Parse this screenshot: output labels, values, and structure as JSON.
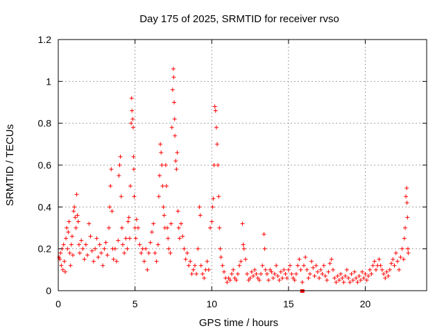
{
  "chart_data": {
    "type": "scatter",
    "title": "Day 175 of 2025, SRMTID for receiver rvso",
    "xlabel": "GPS time / hours",
    "ylabel": "SRMTID / TECUs",
    "xlim": [
      0,
      24
    ],
    "ylim": [
      0,
      1.2
    ],
    "xticks": [
      0,
      5,
      10,
      15,
      20
    ],
    "xtick_labels": [
      "0",
      "5",
      "10",
      "15",
      "20"
    ],
    "yticks": [
      0,
      0.2,
      0.4,
      0.6,
      0.8,
      1.0,
      1.2
    ],
    "ytick_labels": [
      "0",
      "0.2",
      "0.4",
      "0.6",
      "0.8",
      "1",
      "1.2"
    ],
    "grid": true,
    "marker": "+",
    "color": "#ff0000",
    "series": [
      {
        "name": "SRMTID",
        "points": [
          [
            0.05,
            0.16
          ],
          [
            0.1,
            0.15
          ],
          [
            0.15,
            0.18
          ],
          [
            0.2,
            0.12
          ],
          [
            0.25,
            0.2
          ],
          [
            0.3,
            0.1
          ],
          [
            0.35,
            0.22
          ],
          [
            0.4,
            0.14
          ],
          [
            0.45,
            0.09
          ],
          [
            0.5,
            0.25
          ],
          [
            0.55,
            0.3
          ],
          [
            0.6,
            0.2
          ],
          [
            0.65,
            0.28
          ],
          [
            0.7,
            0.33
          ],
          [
            0.75,
            0.18
          ],
          [
            0.8,
            0.12
          ],
          [
            0.85,
            0.22
          ],
          [
            0.9,
            0.26
          ],
          [
            0.95,
            0.17
          ],
          [
            1.0,
            0.38
          ],
          [
            1.05,
            0.4
          ],
          [
            1.1,
            0.35
          ],
          [
            1.15,
            0.3
          ],
          [
            1.2,
            0.46
          ],
          [
            1.25,
            0.36
          ],
          [
            1.3,
            0.33
          ],
          [
            1.35,
            0.22
          ],
          [
            1.4,
            0.18
          ],
          [
            1.5,
            0.24
          ],
          [
            1.6,
            0.2
          ],
          [
            1.7,
            0.15
          ],
          [
            1.8,
            0.22
          ],
          [
            1.9,
            0.17
          ],
          [
            2.0,
            0.32
          ],
          [
            2.1,
            0.26
          ],
          [
            2.2,
            0.19
          ],
          [
            2.3,
            0.14
          ],
          [
            2.4,
            0.2
          ],
          [
            2.5,
            0.25
          ],
          [
            2.6,
            0.16
          ],
          [
            2.7,
            0.22
          ],
          [
            2.8,
            0.18
          ],
          [
            2.9,
            0.12
          ],
          [
            3.0,
            0.2
          ],
          [
            3.1,
            0.23
          ],
          [
            3.2,
            0.17
          ],
          [
            3.3,
            0.3
          ],
          [
            3.35,
            0.4
          ],
          [
            3.4,
            0.5
          ],
          [
            3.45,
            0.58
          ],
          [
            3.5,
            0.38
          ],
          [
            3.55,
            0.2
          ],
          [
            3.6,
            0.15
          ],
          [
            3.7,
            0.2
          ],
          [
            3.8,
            0.14
          ],
          [
            3.9,
            0.24
          ],
          [
            3.95,
            0.55
          ],
          [
            4.0,
            0.6
          ],
          [
            4.05,
            0.64
          ],
          [
            4.1,
            0.45
          ],
          [
            4.15,
            0.3
          ],
          [
            4.2,
            0.22
          ],
          [
            4.3,
            0.18
          ],
          [
            4.4,
            0.25
          ],
          [
            4.5,
            0.2
          ],
          [
            4.55,
            0.33
          ],
          [
            4.6,
            0.35
          ],
          [
            4.65,
            0.25
          ],
          [
            4.7,
            0.5
          ],
          [
            4.75,
            0.8
          ],
          [
            4.78,
            0.92
          ],
          [
            4.8,
            0.86
          ],
          [
            4.85,
            0.82
          ],
          [
            4.88,
            0.78
          ],
          [
            4.9,
            0.64
          ],
          [
            4.92,
            0.58
          ],
          [
            4.95,
            0.45
          ],
          [
            5.0,
            0.3
          ],
          [
            5.05,
            0.25
          ],
          [
            5.1,
            0.34
          ],
          [
            5.2,
            0.3
          ],
          [
            5.3,
            0.22
          ],
          [
            5.4,
            0.18
          ],
          [
            5.5,
            0.2
          ],
          [
            5.6,
            0.14
          ],
          [
            5.7,
            0.2
          ],
          [
            5.8,
            0.1
          ],
          [
            5.9,
            0.18
          ],
          [
            6.0,
            0.23
          ],
          [
            6.1,
            0.28
          ],
          [
            6.2,
            0.32
          ],
          [
            6.3,
            0.18
          ],
          [
            6.4,
            0.14
          ],
          [
            6.5,
            0.22
          ],
          [
            6.55,
            0.45
          ],
          [
            6.6,
            0.55
          ],
          [
            6.65,
            0.7
          ],
          [
            6.7,
            0.66
          ],
          [
            6.75,
            0.6
          ],
          [
            6.8,
            0.5
          ],
          [
            6.85,
            0.4
          ],
          [
            6.9,
            0.36
          ],
          [
            6.95,
            0.3
          ],
          [
            7.0,
            0.6
          ],
          [
            7.05,
            0.5
          ],
          [
            7.1,
            0.3
          ],
          [
            7.15,
            0.25
          ],
          [
            7.2,
            0.2
          ],
          [
            7.3,
            0.18
          ],
          [
            7.35,
            0.32
          ],
          [
            7.4,
            0.78
          ],
          [
            7.45,
            0.96
          ],
          [
            7.5,
            1.06
          ],
          [
            7.52,
            1.02
          ],
          [
            7.55,
            0.9
          ],
          [
            7.58,
            0.82
          ],
          [
            7.6,
            0.74
          ],
          [
            7.65,
            0.62
          ],
          [
            7.7,
            0.58
          ],
          [
            7.75,
            0.66
          ],
          [
            7.8,
            0.38
          ],
          [
            7.85,
            0.3
          ],
          [
            7.9,
            0.25
          ],
          [
            8.0,
            0.32
          ],
          [
            8.1,
            0.26
          ],
          [
            8.2,
            0.2
          ],
          [
            8.3,
            0.15
          ],
          [
            8.4,
            0.18
          ],
          [
            8.5,
            0.12
          ],
          [
            8.6,
            0.14
          ],
          [
            8.7,
            0.08
          ],
          [
            8.8,
            0.1
          ],
          [
            8.9,
            0.12
          ],
          [
            9.0,
            0.08
          ],
          [
            9.1,
            0.2
          ],
          [
            9.2,
            0.4
          ],
          [
            9.25,
            0.36
          ],
          [
            9.3,
            0.12
          ],
          [
            9.4,
            0.08
          ],
          [
            9.5,
            0.06
          ],
          [
            9.6,
            0.1
          ],
          [
            9.7,
            0.14
          ],
          [
            9.8,
            0.1
          ],
          [
            9.9,
            0.3
          ],
          [
            10.0,
            0.33
          ],
          [
            10.05,
            0.4
          ],
          [
            10.1,
            0.44
          ],
          [
            10.15,
            0.6
          ],
          [
            10.2,
            0.88
          ],
          [
            10.25,
            0.86
          ],
          [
            10.3,
            0.78
          ],
          [
            10.35,
            0.7
          ],
          [
            10.4,
            0.6
          ],
          [
            10.45,
            0.45
          ],
          [
            10.5,
            0.3
          ],
          [
            10.55,
            0.2
          ],
          [
            10.6,
            0.16
          ],
          [
            10.7,
            0.12
          ],
          [
            10.8,
            0.09
          ],
          [
            10.9,
            0.06
          ],
          [
            11.0,
            0.04
          ],
          [
            11.1,
            0.06
          ],
          [
            11.2,
            0.05
          ],
          [
            11.3,
            0.08
          ],
          [
            11.4,
            0.1
          ],
          [
            11.5,
            0.06
          ],
          [
            11.6,
            0.05
          ],
          [
            11.7,
            0.08
          ],
          [
            11.8,
            0.12
          ],
          [
            11.9,
            0.14
          ],
          [
            12.0,
            0.32
          ],
          [
            12.05,
            0.22
          ],
          [
            12.1,
            0.2
          ],
          [
            12.2,
            0.15
          ],
          [
            12.3,
            0.08
          ],
          [
            12.4,
            0.05
          ],
          [
            12.5,
            0.06
          ],
          [
            12.6,
            0.09
          ],
          [
            12.7,
            0.07
          ],
          [
            12.8,
            0.1
          ],
          [
            12.9,
            0.08
          ],
          [
            13.0,
            0.06
          ],
          [
            13.1,
            0.05
          ],
          [
            13.2,
            0.08
          ],
          [
            13.3,
            0.12
          ],
          [
            13.4,
            0.27
          ],
          [
            13.45,
            0.2
          ],
          [
            13.5,
            0.1
          ],
          [
            13.6,
            0.08
          ],
          [
            13.7,
            0.05
          ],
          [
            13.8,
            0.1
          ],
          [
            13.9,
            0.09
          ],
          [
            14.0,
            0.06
          ],
          [
            14.1,
            0.08
          ],
          [
            14.2,
            0.12
          ],
          [
            14.3,
            0.07
          ],
          [
            14.4,
            0.05
          ],
          [
            14.5,
            0.09
          ],
          [
            14.6,
            0.06
          ],
          [
            14.7,
            0.1
          ],
          [
            14.8,
            0.08
          ],
          [
            14.9,
            0.06
          ],
          [
            15.0,
            0.1
          ],
          [
            15.1,
            0.12
          ],
          [
            15.2,
            0.08
          ],
          [
            15.3,
            0.06
          ],
          [
            15.4,
            0.05
          ],
          [
            15.5,
            0.08
          ],
          [
            15.6,
            0.12
          ],
          [
            15.7,
            0.15
          ],
          [
            15.8,
            0.1
          ],
          [
            15.9,
            0.04
          ],
          [
            16.0,
            0.12
          ],
          [
            16.1,
            0.16
          ],
          [
            16.2,
            0.1
          ],
          [
            16.3,
            0.06
          ],
          [
            16.4,
            0.08
          ],
          [
            16.5,
            0.14
          ],
          [
            16.6,
            0.11
          ],
          [
            16.7,
            0.07
          ],
          [
            16.8,
            0.12
          ],
          [
            16.9,
            0.09
          ],
          [
            17.0,
            0.06
          ],
          [
            17.1,
            0.1
          ],
          [
            17.2,
            0.08
          ],
          [
            17.3,
            0.12
          ],
          [
            17.4,
            0.07
          ],
          [
            17.5,
            0.05
          ],
          [
            17.6,
            0.09
          ],
          [
            17.7,
            0.13
          ],
          [
            17.8,
            0.15
          ],
          [
            17.9,
            0.1
          ],
          [
            18.0,
            0.06
          ],
          [
            18.1,
            0.04
          ],
          [
            18.2,
            0.07
          ],
          [
            18.3,
            0.05
          ],
          [
            18.4,
            0.08
          ],
          [
            18.5,
            0.06
          ],
          [
            18.6,
            0.04
          ],
          [
            18.7,
            0.07
          ],
          [
            18.8,
            0.1
          ],
          [
            18.9,
            0.06
          ],
          [
            19.0,
            0.04
          ],
          [
            19.1,
            0.08
          ],
          [
            19.2,
            0.05
          ],
          [
            19.3,
            0.09
          ],
          [
            19.4,
            0.06
          ],
          [
            19.5,
            0.04
          ],
          [
            19.6,
            0.07
          ],
          [
            19.7,
            0.05
          ],
          [
            19.8,
            0.09
          ],
          [
            19.9,
            0.06
          ],
          [
            20.0,
            0.08
          ],
          [
            20.1,
            0.05
          ],
          [
            20.2,
            0.07
          ],
          [
            20.3,
            0.1
          ],
          [
            20.4,
            0.08
          ],
          [
            20.5,
            0.12
          ],
          [
            20.6,
            0.14
          ],
          [
            20.7,
            0.1
          ],
          [
            20.8,
            0.12
          ],
          [
            20.9,
            0.15
          ],
          [
            21.0,
            0.12
          ],
          [
            21.1,
            0.1
          ],
          [
            21.2,
            0.08
          ],
          [
            21.3,
            0.06
          ],
          [
            21.4,
            0.09
          ],
          [
            21.5,
            0.07
          ],
          [
            21.6,
            0.1
          ],
          [
            21.7,
            0.13
          ],
          [
            21.8,
            0.15
          ],
          [
            21.9,
            0.12
          ],
          [
            22.0,
            0.18
          ],
          [
            22.1,
            0.14
          ],
          [
            22.2,
            0.1
          ],
          [
            22.3,
            0.16
          ],
          [
            22.4,
            0.2
          ],
          [
            22.5,
            0.15
          ],
          [
            22.55,
            0.25
          ],
          [
            22.6,
            0.3
          ],
          [
            22.65,
            0.45
          ],
          [
            22.7,
            0.49
          ],
          [
            22.72,
            0.42
          ],
          [
            22.75,
            0.35
          ],
          [
            22.78,
            0.2
          ],
          [
            22.8,
            0.18
          ]
        ]
      }
    ],
    "marker_square": [
      15.9,
      0.0
    ]
  }
}
